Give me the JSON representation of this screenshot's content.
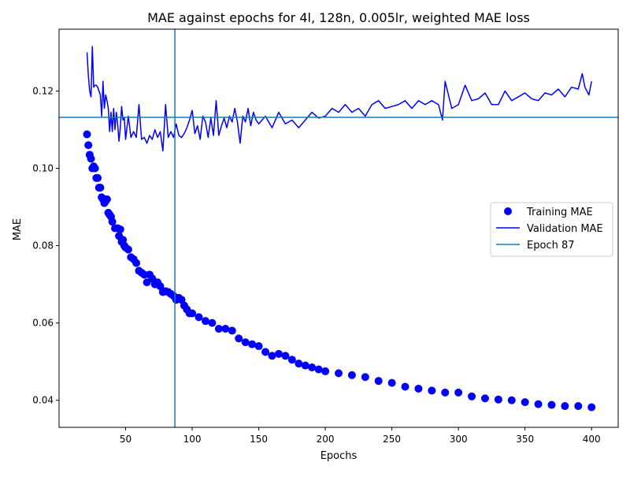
{
  "chart_data": {
    "type": "line",
    "title": "MAE against epochs for 4l, 128n, 0.005lr, weighted MAE loss",
    "xlabel": "Epochs",
    "ylabel": "MAE",
    "xlim": [
      0,
      420
    ],
    "ylim": [
      0.033,
      0.136
    ],
    "x_ticks": [
      50,
      100,
      150,
      200,
      250,
      300,
      350,
      400
    ],
    "x_tick_labels": [
      "50",
      "100",
      "150",
      "200",
      "250",
      "300",
      "350",
      "400"
    ],
    "y_ticks": [
      0.04,
      0.06,
      0.08,
      0.1,
      0.12
    ],
    "y_tick_labels": [
      "0.04",
      "0.06",
      "0.08",
      "0.10",
      "0.12"
    ],
    "grid": false,
    "legend_position": "center-right",
    "series": [
      {
        "name": "Training MAE",
        "style": "markers",
        "color": "#0000ff",
        "x": [
          21,
          22,
          23,
          24,
          25,
          26,
          27,
          28,
          29,
          30,
          31,
          32,
          33,
          34,
          35,
          36,
          37,
          38,
          39,
          40,
          42,
          44,
          45,
          46,
          47,
          48,
          49,
          50,
          52,
          54,
          56,
          58,
          60,
          62,
          64,
          66,
          68,
          70,
          72,
          74,
          76,
          78,
          80,
          82,
          84,
          86,
          88,
          90,
          92,
          94,
          96,
          98,
          100,
          105,
          110,
          115,
          120,
          125,
          130,
          135,
          140,
          145,
          150,
          155,
          160,
          165,
          170,
          175,
          180,
          185,
          190,
          195,
          200,
          210,
          220,
          230,
          240,
          250,
          260,
          270,
          280,
          290,
          300,
          310,
          320,
          330,
          340,
          350,
          360,
          370,
          380,
          390,
          400
        ],
        "y": [
          0.1088,
          0.106,
          0.1035,
          0.1025,
          0.1,
          0.1005,
          0.1,
          0.0975,
          0.0975,
          0.095,
          0.095,
          0.0925,
          0.092,
          0.091,
          0.0915,
          0.092,
          0.0885,
          0.088,
          0.0875,
          0.0862,
          0.0845,
          0.0845,
          0.0825,
          0.0842,
          0.081,
          0.0815,
          0.08,
          0.0795,
          0.079,
          0.077,
          0.0765,
          0.0755,
          0.0735,
          0.073,
          0.0725,
          0.0705,
          0.0725,
          0.0715,
          0.07,
          0.0705,
          0.0695,
          0.068,
          0.0682,
          0.068,
          0.0675,
          0.067,
          0.066,
          0.0665,
          0.066,
          0.0645,
          0.0635,
          0.0625,
          0.0625,
          0.0615,
          0.0605,
          0.06,
          0.0585,
          0.0585,
          0.058,
          0.056,
          0.055,
          0.0545,
          0.054,
          0.0525,
          0.0515,
          0.052,
          0.0515,
          0.0505,
          0.0495,
          0.049,
          0.0485,
          0.048,
          0.0475,
          0.047,
          0.0465,
          0.046,
          0.045,
          0.0445,
          0.0435,
          0.043,
          0.0425,
          0.042,
          0.042,
          0.041,
          0.0405,
          0.0402,
          0.04,
          0.0395,
          0.039,
          0.0388,
          0.0385,
          0.0385,
          0.0382
        ]
      },
      {
        "name": "Validation MAE",
        "style": "line",
        "color": "#0000ff",
        "x": [
          21,
          22,
          23,
          24,
          25,
          26,
          27,
          28,
          29,
          30,
          31,
          32,
          33,
          34,
          35,
          36,
          37,
          38,
          39,
          40,
          41,
          42,
          43,
          44,
          45,
          46,
          47,
          48,
          49,
          50,
          52,
          54,
          56,
          58,
          60,
          62,
          64,
          66,
          68,
          70,
          72,
          74,
          76,
          78,
          80,
          82,
          84,
          86,
          88,
          90,
          92,
          94,
          96,
          98,
          100,
          102,
          104,
          106,
          108,
          110,
          112,
          114,
          116,
          118,
          120,
          122,
          124,
          126,
          128,
          130,
          132,
          134,
          136,
          138,
          140,
          142,
          144,
          146,
          148,
          150,
          155,
          160,
          165,
          170,
          175,
          180,
          185,
          190,
          195,
          200,
          205,
          210,
          215,
          220,
          225,
          230,
          235,
          240,
          245,
          250,
          255,
          260,
          265,
          270,
          275,
          280,
          285,
          288,
          290,
          295,
          300,
          305,
          310,
          315,
          320,
          325,
          330,
          335,
          340,
          345,
          350,
          355,
          360,
          365,
          370,
          375,
          380,
          385,
          390,
          393,
          395,
          398,
          400
        ],
        "y": [
          0.13,
          0.124,
          0.12,
          0.1185,
          0.1315,
          0.121,
          0.1215,
          0.1215,
          0.121,
          0.12,
          0.119,
          0.1135,
          0.1225,
          0.1155,
          0.119,
          0.1175,
          0.1155,
          0.1095,
          0.1145,
          0.1095,
          0.1155,
          0.11,
          0.1145,
          0.1115,
          0.107,
          0.1105,
          0.116,
          0.1125,
          0.113,
          0.1075,
          0.1135,
          0.108,
          0.1095,
          0.108,
          0.1165,
          0.1075,
          0.108,
          0.1065,
          0.1085,
          0.1075,
          0.11,
          0.108,
          0.1095,
          0.1045,
          0.1165,
          0.108,
          0.1095,
          0.108,
          0.1115,
          0.1085,
          0.108,
          0.109,
          0.1105,
          0.1125,
          0.115,
          0.109,
          0.111,
          0.1075,
          0.1135,
          0.112,
          0.108,
          0.113,
          0.1085,
          0.1175,
          0.1085,
          0.111,
          0.113,
          0.1105,
          0.1135,
          0.112,
          0.1155,
          0.112,
          0.1065,
          0.1135,
          0.112,
          0.1155,
          0.111,
          0.1145,
          0.1125,
          0.1115,
          0.1135,
          0.1105,
          0.1145,
          0.1115,
          0.1125,
          0.1105,
          0.1125,
          0.1145,
          0.113,
          0.1135,
          0.1155,
          0.1145,
          0.1165,
          0.1145,
          0.1155,
          0.1135,
          0.1165,
          0.1175,
          0.1155,
          0.116,
          0.1165,
          0.1175,
          0.1155,
          0.1175,
          0.1165,
          0.1175,
          0.1165,
          0.1125,
          0.1225,
          0.1155,
          0.1165,
          0.1215,
          0.1175,
          0.118,
          0.1195,
          0.1165,
          0.1165,
          0.12,
          0.1175,
          0.1185,
          0.1195,
          0.118,
          0.1175,
          0.1195,
          0.119,
          0.1205,
          0.1185,
          0.121,
          0.1205,
          0.1245,
          0.121,
          0.119,
          0.1225
        ]
      }
    ],
    "reference_lines": [
      {
        "name": "Epoch 87",
        "orientation": "vertical",
        "x": 87,
        "color": "#1f77b4"
      },
      {
        "orientation": "horizontal",
        "y": 0.1132,
        "color": "#1f77b4"
      }
    ],
    "legend_entries": [
      "Training MAE",
      "Validation MAE",
      "Epoch 87"
    ]
  }
}
